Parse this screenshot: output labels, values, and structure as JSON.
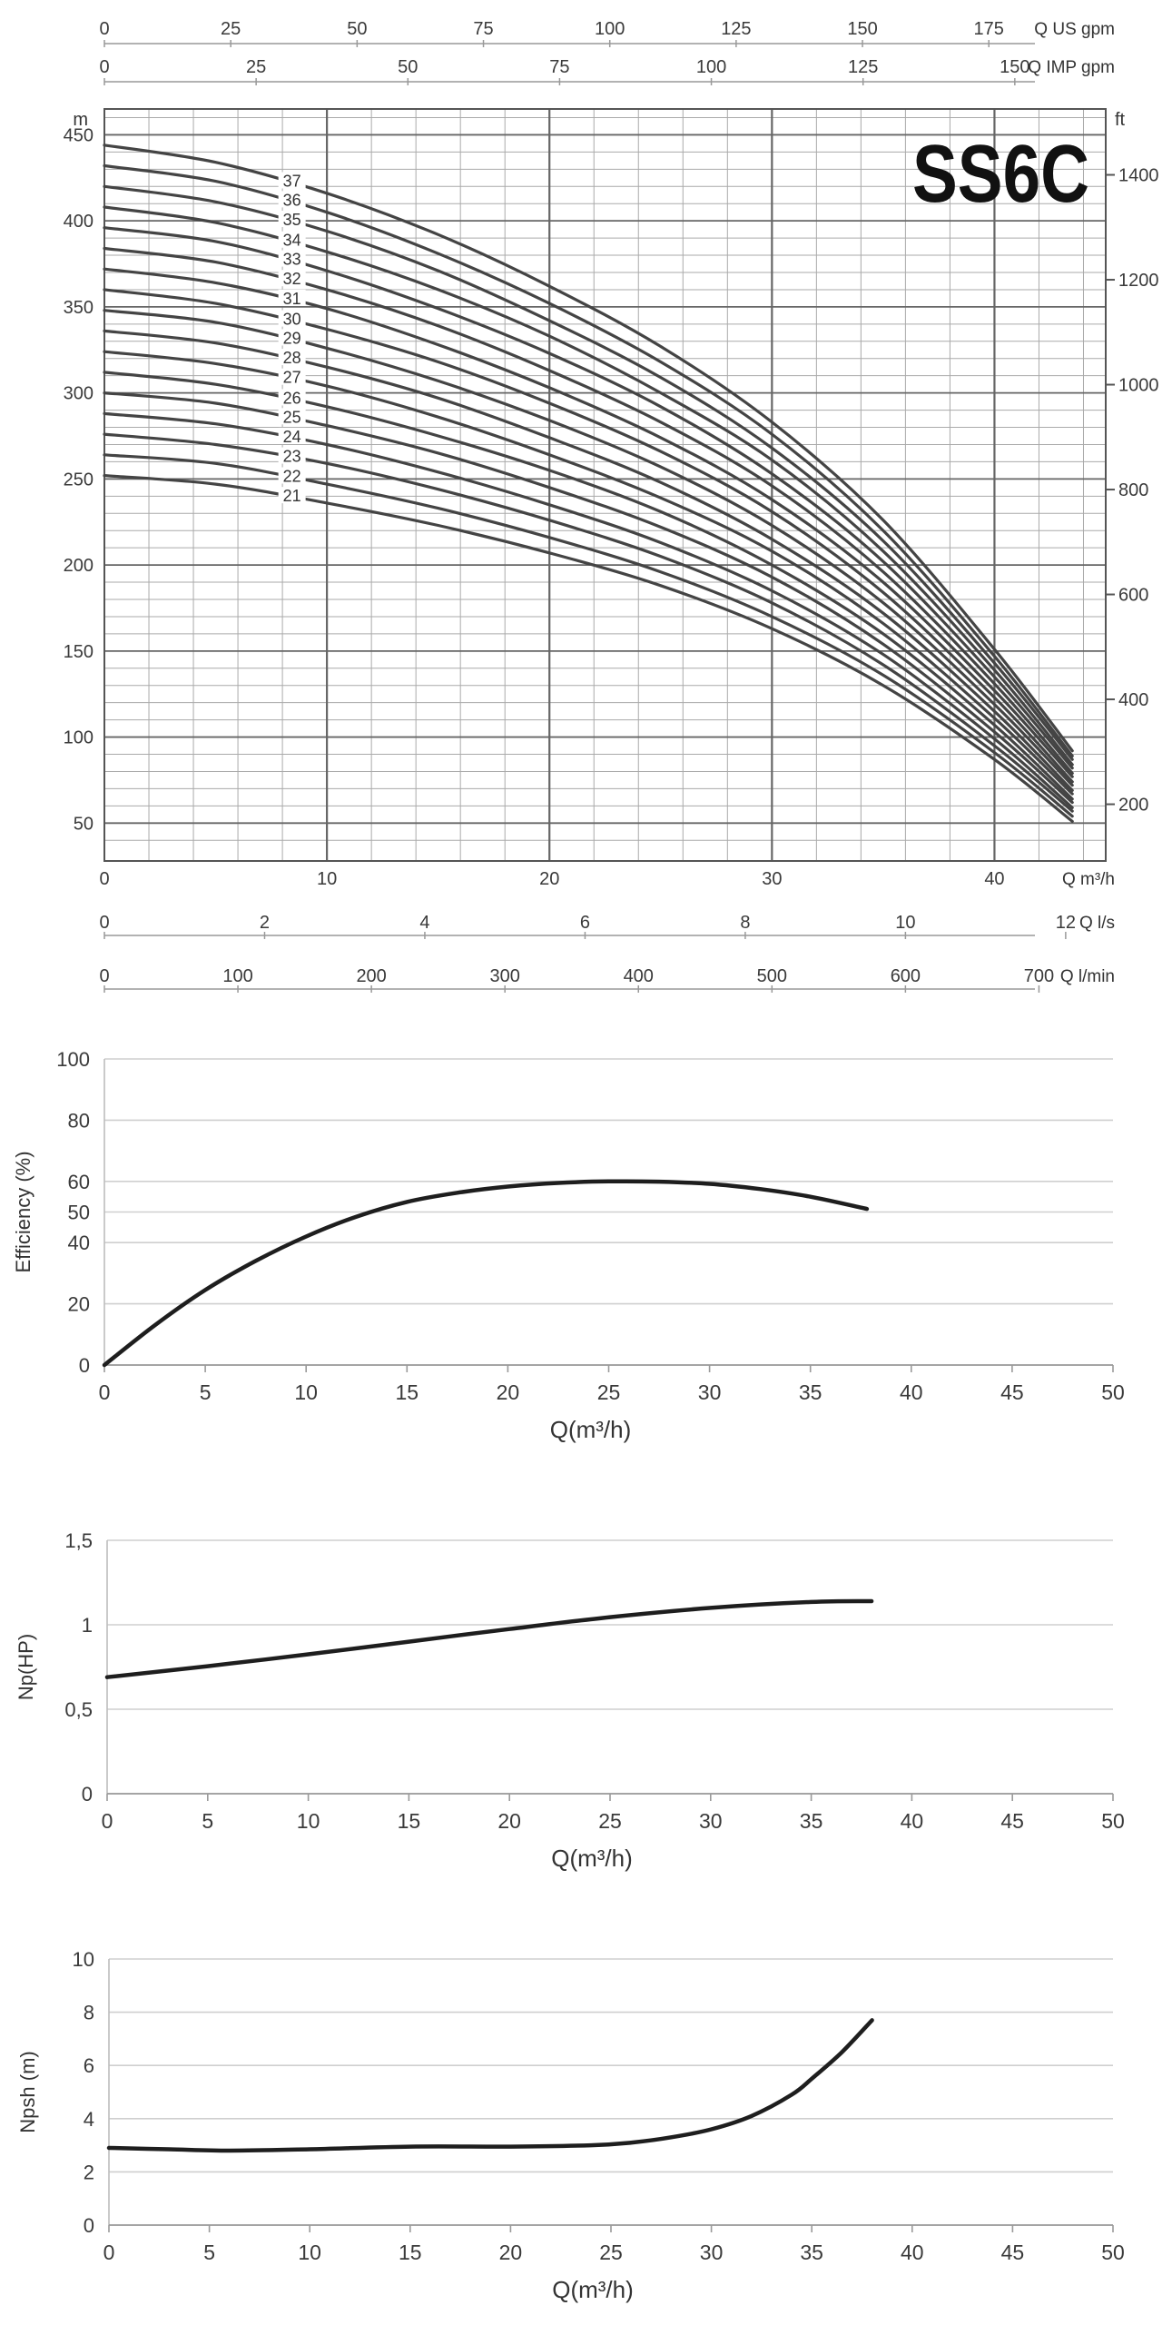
{
  "chart_data": [
    {
      "type": "line",
      "title": "SS6C",
      "xlabel": "Q m³/h",
      "ylabel_left": "m",
      "ylabel_right": "ft",
      "xlim": [
        0,
        45
      ],
      "ylim": [
        28,
        465
      ],
      "x_ticks": [
        0,
        10,
        20,
        30,
        40
      ],
      "y_ticks": [
        50,
        100,
        150,
        200,
        250,
        300,
        350,
        400,
        450
      ],
      "ft_ticks": [
        200,
        400,
        600,
        800,
        1000,
        1200,
        1400
      ],
      "ft_per_m": 3.2808,
      "grid": true,
      "secondary_axes": [
        {
          "label": "Q US gpm",
          "position": "top",
          "factor": 4.4029,
          "ticks": [
            "0",
            "25",
            "50",
            "75",
            "100",
            "125",
            "150",
            "175"
          ]
        },
        {
          "label": "Q IMP gpm",
          "position": "top",
          "factor": 3.6662,
          "ticks": [
            "0",
            "25",
            "50",
            "75",
            "100",
            "125",
            "150"
          ]
        },
        {
          "label": "Q l/s",
          "position": "bottom",
          "factor": 0.27778,
          "ticks": [
            "0",
            "2",
            "4",
            "6",
            "8",
            "10",
            "12"
          ]
        },
        {
          "label": "Q l/min",
          "position": "bottom",
          "factor": 16.667,
          "ticks": [
            "0",
            "100",
            "200",
            "300",
            "400",
            "500",
            "600",
            "700"
          ]
        }
      ],
      "x": [
        0,
        5,
        10,
        15,
        20,
        25,
        30,
        35,
        40,
        43.5
      ],
      "series": [
        {
          "name": "21",
          "values": [
            252,
            247,
            236,
            223,
            207,
            188,
            163,
            130,
            87,
            51
          ]
        },
        {
          "name": "22",
          "values": [
            264,
            259,
            247,
            233,
            216,
            196,
            170,
            136,
            91,
            54
          ]
        },
        {
          "name": "23",
          "values": [
            276,
            270,
            259,
            244,
            226,
            205,
            178,
            142,
            95,
            57
          ]
        },
        {
          "name": "24",
          "values": [
            288,
            282,
            270,
            254,
            235,
            213,
            185,
            148,
            99,
            59
          ]
        },
        {
          "name": "25",
          "values": [
            300,
            294,
            281,
            265,
            245,
            222,
            193,
            154,
            103,
            62
          ]
        },
        {
          "name": "26",
          "values": [
            312,
            305,
            292,
            275,
            255,
            231,
            200,
            160,
            107,
            64
          ]
        },
        {
          "name": "27",
          "values": [
            324,
            317,
            304,
            286,
            264,
            239,
            208,
            166,
            111,
            67
          ]
        },
        {
          "name": "28",
          "values": [
            336,
            329,
            315,
            297,
            274,
            248,
            215,
            172,
            115,
            69
          ]
        },
        {
          "name": "29",
          "values": [
            348,
            341,
            326,
            307,
            284,
            257,
            223,
            178,
            119,
            72
          ]
        },
        {
          "name": "30",
          "values": [
            360,
            352,
            337,
            318,
            294,
            266,
            231,
            184,
            123,
            74
          ]
        },
        {
          "name": "31",
          "values": [
            372,
            364,
            349,
            328,
            303,
            274,
            238,
            190,
            127,
            77
          ]
        },
        {
          "name": "32",
          "values": [
            384,
            376,
            360,
            339,
            313,
            283,
            246,
            196,
            131,
            79
          ]
        },
        {
          "name": "33",
          "values": [
            396,
            388,
            371,
            349,
            323,
            292,
            253,
            202,
            135,
            82
          ]
        },
        {
          "name": "34",
          "values": [
            408,
            399,
            382,
            360,
            333,
            300,
            261,
            208,
            139,
            84
          ]
        },
        {
          "name": "35",
          "values": [
            420,
            411,
            394,
            371,
            342,
            309,
            268,
            214,
            143,
            87
          ]
        },
        {
          "name": "36",
          "values": [
            432,
            423,
            405,
            381,
            352,
            318,
            276,
            220,
            147,
            89
          ]
        },
        {
          "name": "37",
          "values": [
            444,
            434,
            416,
            392,
            362,
            327,
            283,
            226,
            151,
            92
          ]
        }
      ]
    },
    {
      "type": "line",
      "title": "",
      "xlabel": "Q(m³/h)",
      "ylabel": "Efficiency (%)",
      "xlim": [
        0,
        50
      ],
      "ylim": [
        0,
        100
      ],
      "x_ticks": [
        "0",
        "5",
        "10",
        "15",
        "20",
        "25",
        "30",
        "35",
        "40",
        "45",
        "50"
      ],
      "y_ticks": [
        "0",
        "20",
        "40",
        "50",
        "60",
        "80",
        "100"
      ],
      "y_tick_values": [
        0,
        20,
        40,
        50,
        60,
        80,
        100
      ],
      "grid": true,
      "x": [
        0,
        2.5,
        5,
        7.5,
        10,
        12.5,
        15,
        17.5,
        20,
        22.5,
        25,
        27.5,
        30,
        32.5,
        35,
        37.8
      ],
      "series": [
        {
          "name": "Efficiency",
          "values": [
            0,
            13,
            24.5,
            34,
            42,
            48.5,
            53.3,
            56.3,
            58.3,
            59.5,
            60,
            59.9,
            59.2,
            57.5,
            55,
            51
          ]
        }
      ]
    },
    {
      "type": "line",
      "title": "",
      "xlabel": "Q(m³/h)",
      "ylabel": "Np(HP)",
      "xlim": [
        0,
        50
      ],
      "ylim": [
        0,
        1.5
      ],
      "x_ticks": [
        "0",
        "5",
        "10",
        "15",
        "20",
        "25",
        "30",
        "35",
        "40",
        "45",
        "50"
      ],
      "y_ticks": [
        "0",
        "0,5",
        "1",
        "1,5"
      ],
      "y_tick_values": [
        0,
        0.5,
        1,
        1.5
      ],
      "grid": true,
      "x": [
        0,
        5,
        10,
        15,
        20,
        25,
        30,
        35,
        38
      ],
      "series": [
        {
          "name": "Np",
          "values": [
            0.69,
            0.755,
            0.825,
            0.9,
            0.975,
            1.045,
            1.1,
            1.135,
            1.14
          ]
        }
      ]
    },
    {
      "type": "line",
      "title": "",
      "xlabel": "Q(m³/h)",
      "ylabel": "Npsh (m)",
      "xlim": [
        0,
        50
      ],
      "ylim": [
        0,
        10
      ],
      "x_ticks": [
        "0",
        "5",
        "10",
        "15",
        "20",
        "25",
        "30",
        "35",
        "40",
        "45",
        "50"
      ],
      "y_ticks": [
        "0",
        "2",
        "4",
        "6",
        "8",
        "10"
      ],
      "y_tick_values": [
        0,
        2,
        4,
        6,
        8,
        10
      ],
      "grid": true,
      "x": [
        0,
        3,
        6,
        10,
        15,
        20,
        24,
        26,
        28,
        30,
        32,
        34,
        35,
        36.5,
        38
      ],
      "series": [
        {
          "name": "Npsh",
          "values": [
            2.9,
            2.85,
            2.8,
            2.85,
            2.95,
            2.95,
            3.0,
            3.1,
            3.3,
            3.6,
            4.1,
            4.9,
            5.5,
            6.5,
            7.7
          ]
        }
      ]
    }
  ]
}
